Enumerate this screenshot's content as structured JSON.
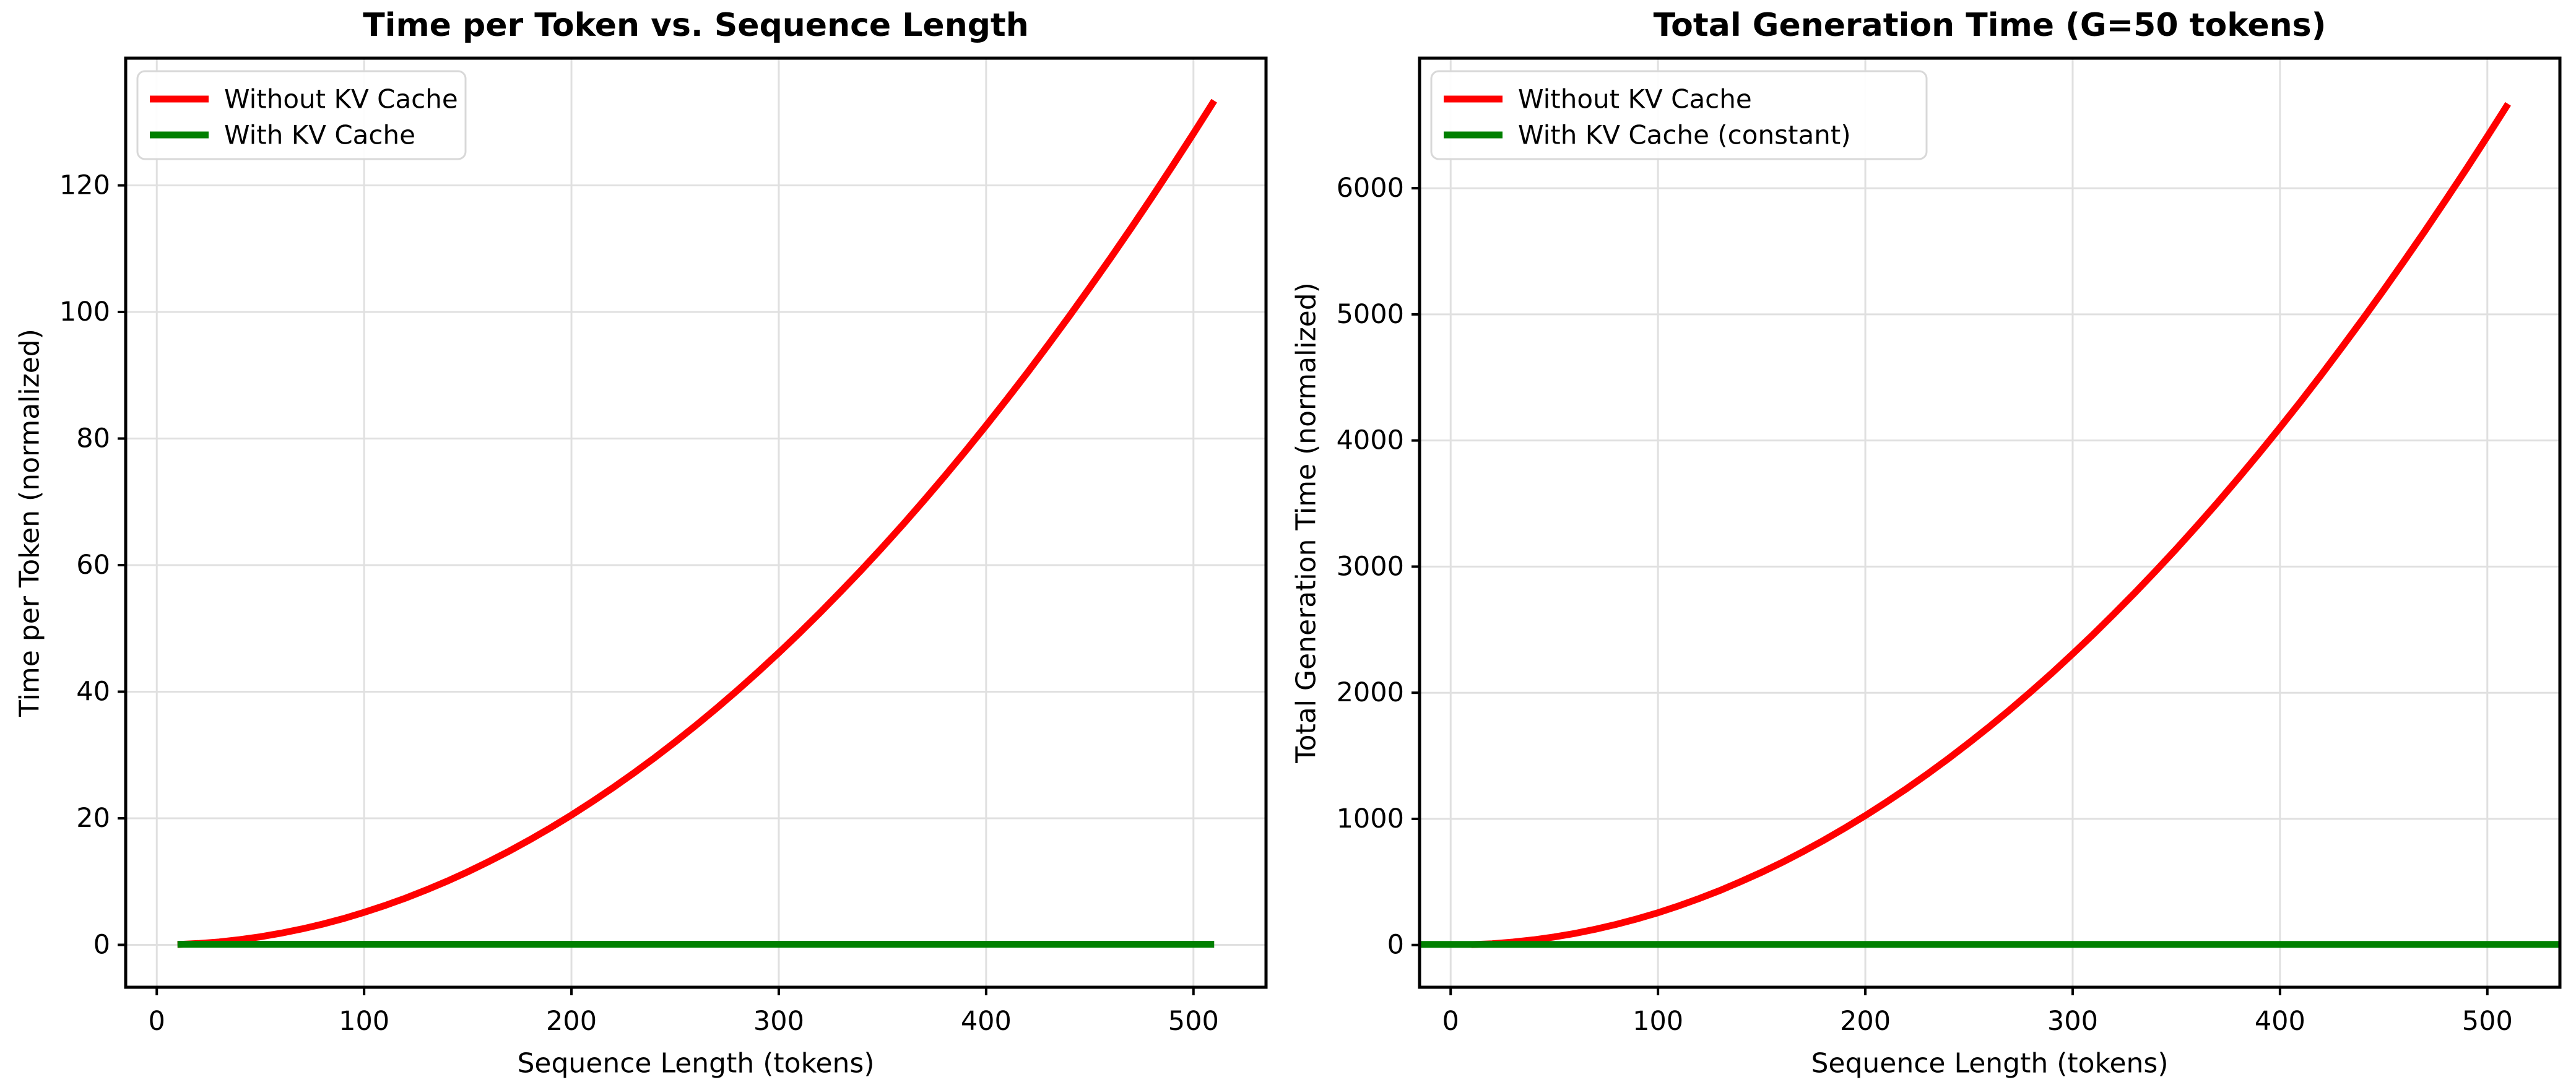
{
  "figure": {
    "background": "#ffffff",
    "grid_color": "#e0e0e0",
    "spine_color": "#000000",
    "legend_border_color": "#d8d8d8",
    "legend_background": "#ffffff"
  },
  "chart_data": [
    {
      "type": "line",
      "title": "Time per Token vs. Sequence Length",
      "xlabel": "Sequence Length (tokens)",
      "ylabel": "Time per Token (normalized)",
      "xlim": [
        -15,
        535
      ],
      "ylim": [
        -6.7,
        140.1
      ],
      "xticks": [
        0,
        100,
        200,
        300,
        400,
        500
      ],
      "yticks": [
        0,
        20,
        40,
        60,
        80,
        100,
        120
      ],
      "grid": true,
      "legend_position": "upper left",
      "x": [
        10,
        20,
        30,
        40,
        50,
        60,
        70,
        80,
        90,
        100,
        110,
        120,
        130,
        140,
        150,
        160,
        170,
        180,
        190,
        200,
        210,
        220,
        230,
        240,
        250,
        260,
        270,
        280,
        290,
        300,
        310,
        320,
        330,
        340,
        350,
        360,
        370,
        380,
        390,
        400,
        410,
        420,
        430,
        440,
        450,
        460,
        470,
        480,
        490,
        500,
        510
      ],
      "series": [
        {
          "name": "Without KV Cache",
          "color": "#ff0000",
          "values": [
            0.05,
            0.21,
            0.46,
            0.82,
            1.28,
            1.85,
            2.51,
            3.28,
            4.15,
            5.13,
            6.21,
            7.38,
            8.67,
            10.05,
            11.54,
            13.13,
            14.82,
            16.62,
            18.51,
            20.51,
            22.62,
            24.82,
            27.13,
            29.54,
            32.05,
            34.67,
            37.38,
            40.21,
            43.13,
            46.15,
            49.28,
            52.51,
            55.85,
            59.28,
            62.82,
            66.46,
            70.21,
            74.05,
            78.0,
            82.05,
            86.21,
            90.46,
            94.82,
            99.28,
            103.85,
            108.51,
            113.28,
            118.15,
            123.13,
            128.21,
            133.38
          ]
        },
        {
          "name": "With KV Cache",
          "color": "#008000",
          "constant": 0.1,
          "full_width": false
        }
      ]
    },
    {
      "type": "line",
      "title": "Total Generation Time (G=50 tokens)",
      "xlabel": "Sequence Length (tokens)",
      "ylabel": "Total Generation Time (normalized)",
      "xlim": [
        -15,
        535
      ],
      "ylim": [
        -335,
        7031
      ],
      "xticks": [
        0,
        100,
        200,
        300,
        400,
        500
      ],
      "yticks": [
        0,
        1000,
        2000,
        3000,
        4000,
        5000,
        6000
      ],
      "grid": true,
      "legend_position": "upper left",
      "x": [
        10,
        20,
        30,
        40,
        50,
        60,
        70,
        80,
        90,
        100,
        110,
        120,
        130,
        140,
        150,
        160,
        170,
        180,
        190,
        200,
        210,
        220,
        230,
        240,
        250,
        260,
        270,
        280,
        290,
        300,
        310,
        320,
        330,
        340,
        350,
        360,
        370,
        380,
        390,
        400,
        410,
        420,
        430,
        440,
        450,
        460,
        470,
        480,
        490,
        500,
        510
      ],
      "series": [
        {
          "name": "Without KV Cache",
          "color": "#ff0000",
          "values": [
            3,
            10,
            23,
            41,
            64,
            92,
            126,
            164,
            208,
            256,
            310,
            369,
            433,
            503,
            577,
            656,
            741,
            831,
            926,
            1026,
            1131,
            1241,
            1356,
            1477,
            1603,
            1733,
            1869,
            2010,
            2156,
            2308,
            2464,
            2626,
            2792,
            2964,
            3141,
            3323,
            3510,
            3703,
            3900,
            4103,
            4310,
            4523,
            4741,
            4964,
            5192,
            5426,
            5664,
            5908,
            6156,
            6410,
            6669
          ]
        },
        {
          "name": "With KV Cache (constant)",
          "color": "#008000",
          "constant": 5,
          "full_width": true
        }
      ]
    }
  ]
}
